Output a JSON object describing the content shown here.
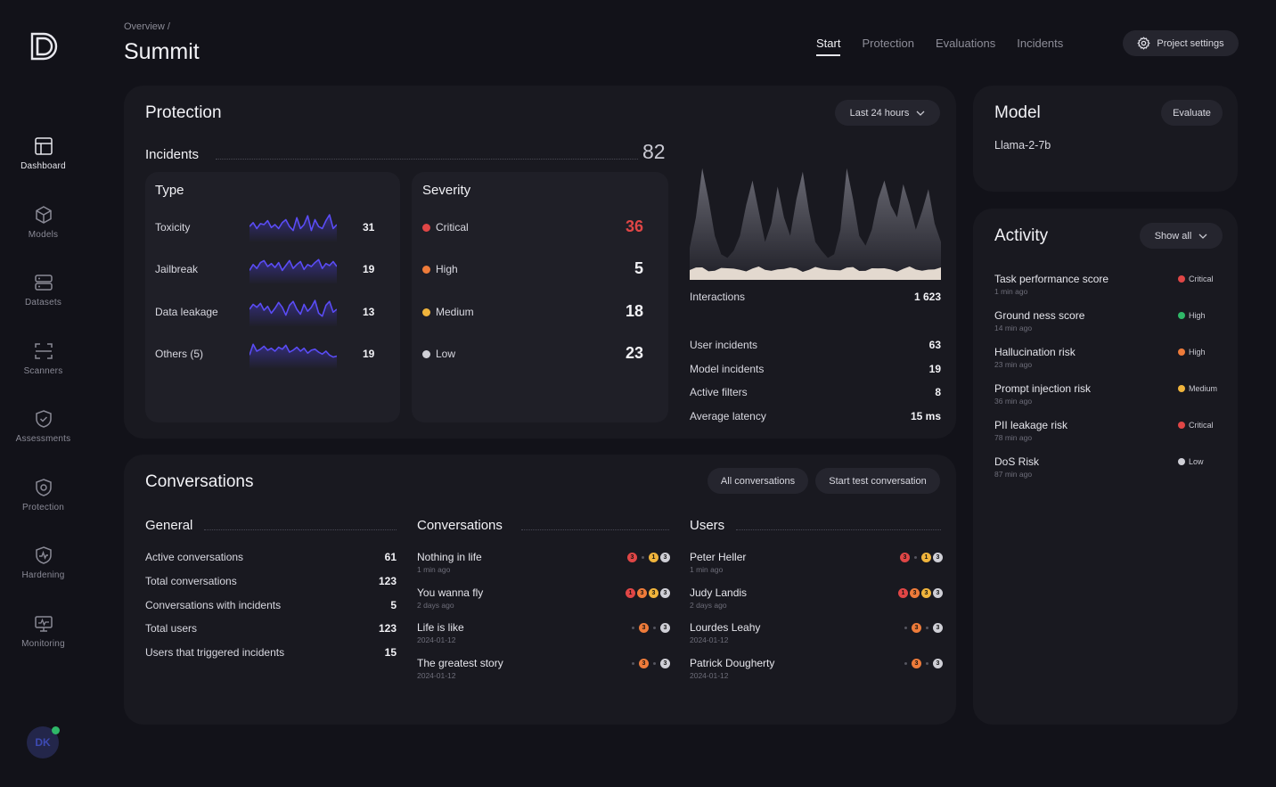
{
  "app": {
    "breadcrumb": "Overview /",
    "title": "Summit",
    "user_initials": "DK"
  },
  "sidebar": {
    "items": [
      {
        "label": "Dashboard",
        "icon": "layout-icon"
      },
      {
        "label": "Models",
        "icon": "cube-icon"
      },
      {
        "label": "Datasets",
        "icon": "database-icon"
      },
      {
        "label": "Scanners",
        "icon": "scan-icon"
      },
      {
        "label": "Assessments",
        "icon": "shield-check-icon"
      },
      {
        "label": "Protection",
        "icon": "shield-icon"
      },
      {
        "label": "Hardening",
        "icon": "shield-pulse-icon"
      },
      {
        "label": "Monitoring",
        "icon": "monitor-icon"
      }
    ]
  },
  "tabs": [
    {
      "label": "Start",
      "active": true
    },
    {
      "label": "Protection",
      "active": false
    },
    {
      "label": "Evaluations",
      "active": false
    },
    {
      "label": "Incidents",
      "active": false
    }
  ],
  "project_settings_label": "Project settings",
  "protection": {
    "title": "Protection",
    "range_label": "Last 24 hours",
    "incidents_label": "Incidents",
    "incidents_total": "82",
    "type": {
      "title": "Type",
      "rows": [
        {
          "label": "Toxicity",
          "value": "31",
          "spark": [
            0.4,
            0.6,
            0.3,
            0.55,
            0.5,
            0.7,
            0.35,
            0.5,
            0.3,
            0.6,
            0.75,
            0.4,
            0.2,
            0.85,
            0.3,
            0.5,
            0.95,
            0.2,
            0.75,
            0.4,
            0.3,
            0.7,
            1.0,
            0.3,
            0.5
          ]
        },
        {
          "label": "Jailbreak",
          "value": "19",
          "spark": [
            0.3,
            0.6,
            0.4,
            0.7,
            0.8,
            0.5,
            0.65,
            0.45,
            0.7,
            0.3,
            0.55,
            0.8,
            0.4,
            0.6,
            0.75,
            0.35,
            0.6,
            0.5,
            0.7,
            0.85,
            0.4,
            0.65,
            0.55,
            0.75,
            0.5
          ]
        },
        {
          "label": "Data leakage",
          "value": "13",
          "spark": [
            0.5,
            0.75,
            0.6,
            0.8,
            0.45,
            0.65,
            0.3,
            0.55,
            0.85,
            0.6,
            0.2,
            0.7,
            0.9,
            0.5,
            0.25,
            0.75,
            0.4,
            0.6,
            0.95,
            0.3,
            0.15,
            0.7,
            0.9,
            0.35,
            0.5
          ]
        },
        {
          "label": "Others (5)",
          "value": "19",
          "spark": [
            0.3,
            0.85,
            0.5,
            0.6,
            0.75,
            0.55,
            0.65,
            0.5,
            0.7,
            0.6,
            0.8,
            0.45,
            0.55,
            0.7,
            0.5,
            0.65,
            0.4,
            0.55,
            0.6,
            0.45,
            0.35,
            0.5,
            0.3,
            0.2,
            0.25
          ]
        }
      ]
    },
    "severity": {
      "title": "Severity",
      "rows": [
        {
          "label": "Critical",
          "value": "36",
          "color": "#e04646"
        },
        {
          "label": "High",
          "value": "5",
          "color": "#ee7b3a"
        },
        {
          "label": "Medium",
          "value": "18",
          "color": "#f0b43c"
        },
        {
          "label": "Low",
          "value": "23",
          "color": "#cfcfd6"
        }
      ]
    },
    "interactions": {
      "label": "Interactions",
      "value": "1 623",
      "series": [
        0.2,
        0.45,
        0.85,
        0.6,
        0.3,
        0.15,
        0.12,
        0.18,
        0.3,
        0.55,
        0.75,
        0.5,
        0.25,
        0.4,
        0.7,
        0.45,
        0.3,
        0.6,
        0.82,
        0.5,
        0.25,
        0.18,
        0.12,
        0.15,
        0.35,
        0.85,
        0.6,
        0.3,
        0.22,
        0.35,
        0.6,
        0.75,
        0.55,
        0.45,
        0.72,
        0.55,
        0.35,
        0.5,
        0.68,
        0.4,
        0.25
      ]
    },
    "stats": [
      {
        "label": "User incidents",
        "value": "63"
      },
      {
        "label": "Model incidents",
        "value": "19"
      },
      {
        "label": "Active filters",
        "value": "8"
      },
      {
        "label": "Average latency",
        "value": "15 ms"
      }
    ]
  },
  "conversations": {
    "title": "Conversations",
    "all_button": "All conversations",
    "start_button": "Start test conversation",
    "general": {
      "title": "General",
      "rows": [
        {
          "label": "Active conversations",
          "value": "61"
        },
        {
          "label": "Total conversations",
          "value": "123"
        },
        {
          "label": "Conversations with incidents",
          "value": "5"
        },
        {
          "label": "Total users",
          "value": "123"
        },
        {
          "label": "Users that triggered incidents",
          "value": "15"
        }
      ]
    },
    "list": {
      "title": "Conversations",
      "items": [
        {
          "name": "Nothing in life",
          "time": "1 min ago",
          "badges": [
            "r3",
            "sep",
            "y1",
            "g3"
          ]
        },
        {
          "name": "You wanna fly",
          "time": "2 days ago",
          "badges": [
            "r1",
            "o3",
            "y3",
            "g3"
          ]
        },
        {
          "name": "Life is like",
          "time": "2024-01-12",
          "badges": [
            "sep",
            "o3",
            "sep",
            "g3"
          ]
        },
        {
          "name": "The greatest story",
          "time": "2024-01-12",
          "badges": [
            "sep",
            "o3",
            "sep",
            "g3"
          ]
        }
      ]
    },
    "users": {
      "title": "Users",
      "items": [
        {
          "name": "Peter Heller",
          "time": "1 min ago",
          "badges": [
            "r3",
            "sep",
            "y1",
            "g3"
          ]
        },
        {
          "name": "Judy Landis",
          "time": "2 days ago",
          "badges": [
            "r1",
            "o3",
            "y3",
            "g3"
          ]
        },
        {
          "name": "Lourdes Leahy",
          "time": "2024-01-12",
          "badges": [
            "sep",
            "o3",
            "sep",
            "g3"
          ]
        },
        {
          "name": "Patrick Dougherty",
          "time": "2024-01-12",
          "badges": [
            "sep",
            "o3",
            "sep",
            "g3"
          ]
        }
      ]
    }
  },
  "model": {
    "title": "Model",
    "evaluate_label": "Evaluate",
    "name": "Llama-2-7b"
  },
  "activity": {
    "title": "Activity",
    "filter_label": "Show all",
    "items": [
      {
        "name": "Task performance score",
        "time": "1 min ago",
        "severity": "Critical",
        "color": "#e04646"
      },
      {
        "name": "Ground ness score",
        "time": "14 min ago",
        "severity": "High",
        "color": "#2fb868"
      },
      {
        "name": "Hallucination risk",
        "time": "23 min ago",
        "severity": "High",
        "color": "#ee7b3a"
      },
      {
        "name": "Prompt injection risk",
        "time": "36 min ago",
        "severity": "Medium",
        "color": "#f0b43c"
      },
      {
        "name": "PII leakage risk",
        "time": "78 min ago",
        "severity": "Critical",
        "color": "#e04646"
      },
      {
        "name": "DoS Risk",
        "time": "87 min ago",
        "severity": "Low",
        "color": "#cfcfd6"
      }
    ]
  }
}
